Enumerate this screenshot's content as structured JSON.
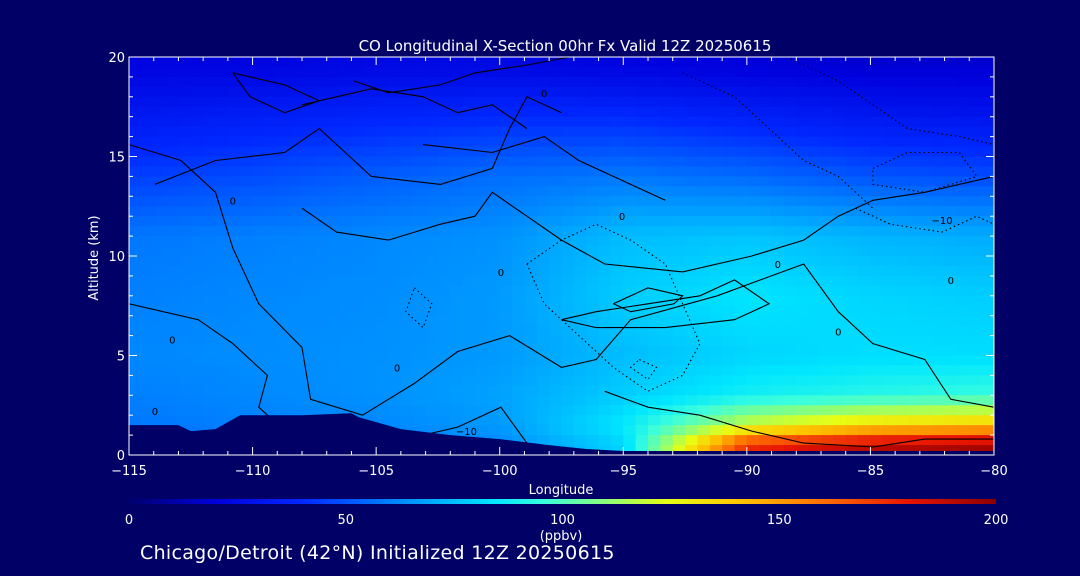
{
  "chart_data": {
    "type": "heatmap",
    "title": "CO Longitudinal X-Section 00hr  Fx Valid 12Z 20250615",
    "xlabel": "Longitude",
    "ylabel": "Altitude (km)",
    "xlim": [
      -115,
      -80
    ],
    "ylim": [
      0,
      20
    ],
    "x_ticks": [
      -115,
      -110,
      -105,
      -100,
      -95,
      -90,
      -85,
      -80
    ],
    "x_tick_labels": [
      "−115",
      "−110",
      "−105",
      "−100",
      "−95",
      "−90",
      "−85",
      "−80"
    ],
    "y_ticks": [
      0,
      5,
      10,
      15,
      20
    ],
    "y_tick_labels": [
      "0",
      "5",
      "10",
      "15",
      "20"
    ],
    "colorbar": {
      "label": "(ppbv)",
      "range": [
        0,
        200
      ],
      "ticks": [
        0,
        50,
        100,
        150,
        200
      ],
      "tick_labels": [
        "0",
        "50",
        "100",
        "150",
        "200"
      ]
    },
    "field": {
      "variable": "CO",
      "units": "ppbv",
      "longitudes": [
        -115,
        -110,
        -105,
        -100,
        -95,
        -90,
        -85,
        -80
      ],
      "altitudes": [
        0.5,
        1.5,
        3,
        5,
        8,
        11,
        14,
        17,
        19.5
      ],
      "values": [
        [
          55,
          58,
          60,
          62,
          80,
          175,
          190,
          195
        ],
        [
          58,
          60,
          62,
          66,
          85,
          120,
          135,
          140
        ],
        [
          60,
          62,
          64,
          68,
          78,
          88,
          92,
          95
        ],
        [
          62,
          63,
          64,
          66,
          74,
          80,
          82,
          82
        ],
        [
          60,
          62,
          63,
          66,
          78,
          84,
          80,
          78
        ],
        [
          58,
          60,
          62,
          64,
          74,
          76,
          72,
          70
        ],
        [
          45,
          48,
          52,
          56,
          58,
          55,
          50,
          48
        ],
        [
          32,
          35,
          38,
          40,
          40,
          36,
          32,
          30
        ],
        [
          22,
          22,
          24,
          24,
          22,
          20,
          18,
          18
        ]
      ]
    },
    "contour_labels": [
      "0",
      "0",
      "0",
      "0",
      "0",
      "0",
      "0",
      "0",
      "0",
      "0",
      "−10",
      "−10"
    ],
    "terrain": {
      "longitudes": [
        -115,
        -113,
        -112.5,
        -111.5,
        -110.5,
        -108,
        -106,
        -105.7,
        -104,
        -102,
        -100,
        -98,
        -96.5,
        -95,
        -80
      ],
      "altitudes": [
        1.5,
        1.5,
        1.2,
        1.3,
        2.0,
        2.0,
        2.1,
        1.9,
        1.3,
        1.0,
        0.8,
        0.5,
        0.3,
        0.2,
        0.2
      ]
    }
  },
  "footer": "Chicago/Detroit (42°N) Initialized 12Z 20250615",
  "colors": {
    "background": "#000066",
    "terrain": "#000066",
    "axes": "#ffffff",
    "contour": "#000000"
  }
}
